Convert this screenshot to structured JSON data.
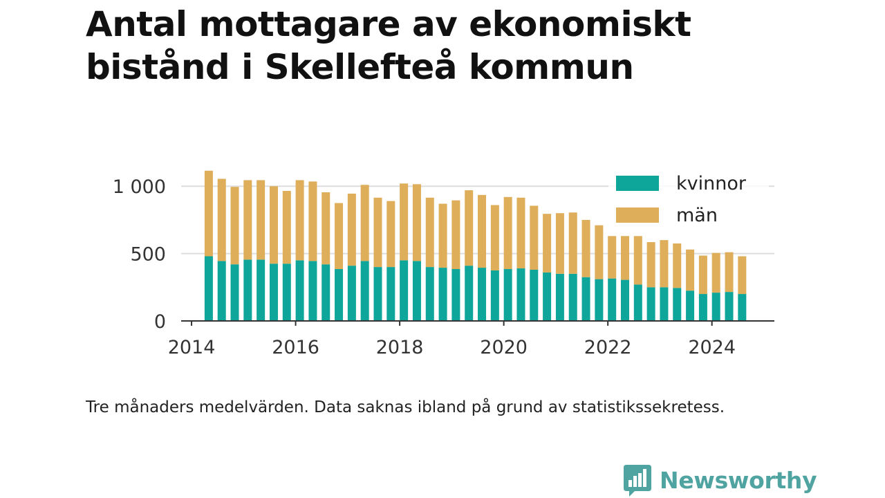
{
  "title": "Antal mottagare av ekonomiskt bistånd i Skellefteå kommun",
  "footnote": "Tre månaders medelvärden. Data saknas ibland på grund av statistikssekretess.",
  "brand": {
    "name": "Newsworthy",
    "icon": "newsworthy-logo-icon",
    "color": "#4fa3a0"
  },
  "colors": {
    "kvinnor": "#0ea59b",
    "man": "#deae5a",
    "gridline": "#dddddd",
    "axis": "#333333"
  },
  "chart_data": {
    "type": "bar",
    "stacked": true,
    "xlim": [
      2013.8,
      2025.2
    ],
    "ylim": [
      0,
      1150
    ],
    "yticks": [
      0,
      500,
      1000
    ],
    "ytick_labels": [
      "0",
      "500",
      "1 000"
    ],
    "xticks": [
      2014,
      2016,
      2018,
      2020,
      2022,
      2024
    ],
    "xtick_labels": [
      "2014",
      "2016",
      "2018",
      "2020",
      "2022",
      "2024"
    ],
    "grid": "horizontal",
    "legend_position": "top-right",
    "x": [
      2014.33,
      2014.58,
      2014.83,
      2015.08,
      2015.33,
      2015.58,
      2015.83,
      2016.08,
      2016.33,
      2016.58,
      2016.83,
      2017.08,
      2017.33,
      2017.58,
      2017.83,
      2018.08,
      2018.33,
      2018.58,
      2018.83,
      2019.08,
      2019.33,
      2019.58,
      2019.83,
      2020.08,
      2020.33,
      2020.58,
      2020.83,
      2021.08,
      2021.33,
      2021.58,
      2021.83,
      2022.08,
      2022.33,
      2022.58,
      2022.83,
      2023.08,
      2023.33,
      2023.58,
      2023.83,
      2024.08,
      2024.33,
      2024.58
    ],
    "series": [
      {
        "name": "kvinnor",
        "color": "#0ea59b",
        "values": [
          480,
          445,
          420,
          455,
          455,
          425,
          425,
          450,
          445,
          420,
          385,
          410,
          445,
          400,
          400,
          450,
          445,
          400,
          395,
          385,
          410,
          395,
          375,
          385,
          390,
          380,
          360,
          350,
          350,
          325,
          310,
          315,
          305,
          270,
          250,
          250,
          245,
          225,
          200,
          210,
          215,
          200
        ]
      },
      {
        "name": "män",
        "color": "#deae5a",
        "values": [
          635,
          610,
          575,
          590,
          590,
          575,
          540,
          595,
          590,
          535,
          490,
          535,
          565,
          515,
          490,
          570,
          570,
          515,
          475,
          510,
          560,
          540,
          485,
          535,
          525,
          475,
          435,
          450,
          455,
          425,
          400,
          315,
          325,
          360,
          335,
          350,
          330,
          305,
          285,
          295,
          295,
          280
        ]
      }
    ]
  }
}
